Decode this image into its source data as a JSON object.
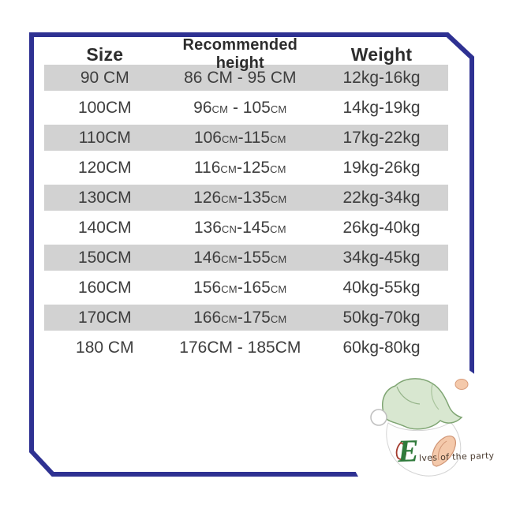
{
  "table": {
    "headers": [
      "Size",
      "Recommended height",
      "Weight"
    ],
    "rows": [
      {
        "size": "90 CM",
        "height": [
          [
            "86 CM - 95 CM",
            "normal"
          ]
        ],
        "weight": "12kg-16kg",
        "shaded": true
      },
      {
        "size": "100CM",
        "height": [
          [
            "96",
            "normal"
          ],
          [
            "CM",
            "small"
          ],
          [
            " - 105",
            "normal"
          ],
          [
            "CM",
            "small"
          ]
        ],
        "weight": "14kg-19kg",
        "shaded": false
      },
      {
        "size": "110CM",
        "height": [
          [
            "106",
            "normal"
          ],
          [
            "CM",
            "small"
          ],
          [
            "-115",
            "normal"
          ],
          [
            "CM",
            "small"
          ]
        ],
        "weight": "17kg-22kg",
        "shaded": true
      },
      {
        "size": "120CM",
        "height": [
          [
            "116",
            "normal"
          ],
          [
            "CM",
            "small"
          ],
          [
            "-125",
            "normal"
          ],
          [
            "CM",
            "small"
          ]
        ],
        "weight": "19kg-26kg",
        "shaded": false
      },
      {
        "size": "130CM",
        "height": [
          [
            "126",
            "normal"
          ],
          [
            "CM",
            "small"
          ],
          [
            "-135",
            "normal"
          ],
          [
            "CM",
            "small"
          ]
        ],
        "weight": "22kg-34kg",
        "shaded": true
      },
      {
        "size": "140CM",
        "height": [
          [
            "136",
            "normal"
          ],
          [
            "CN",
            "small"
          ],
          [
            "-145",
            "normal"
          ],
          [
            "CM",
            "small"
          ]
        ],
        "weight": "26kg-40kg",
        "shaded": false
      },
      {
        "size": "150CM",
        "height": [
          [
            "146",
            "normal"
          ],
          [
            "CM",
            "small"
          ],
          [
            "-155",
            "normal"
          ],
          [
            "CM",
            "small"
          ]
        ],
        "weight": "34kg-45kg",
        "shaded": true
      },
      {
        "size": "160CM",
        "height": [
          [
            "156",
            "normal"
          ],
          [
            "CM",
            "small"
          ],
          [
            "-165",
            "normal"
          ],
          [
            "CM",
            "small"
          ]
        ],
        "weight": "40kg-55kg",
        "shaded": false
      },
      {
        "size": "170CM",
        "height": [
          [
            "166",
            "normal"
          ],
          [
            "CM",
            "small"
          ],
          [
            "-175",
            "normal"
          ],
          [
            "CM",
            "small"
          ]
        ],
        "weight": "50kg-70kg",
        "shaded": true
      },
      {
        "size": "180 CM",
        "height": [
          [
            "176CM - 185CM",
            "normal"
          ]
        ],
        "weight": "60kg-80kg",
        "shaded": false
      }
    ]
  },
  "chart_data": {
    "type": "table",
    "title": "Kids costume size chart",
    "columns": [
      "Size",
      "Recommended height",
      "Weight"
    ],
    "rows": [
      [
        "90 CM",
        "86 CM - 95 CM",
        "12kg-16kg"
      ],
      [
        "100CM",
        "96CM - 105CM",
        "14kg-19kg"
      ],
      [
        "110CM",
        "106CM-115CM",
        "17kg-22kg"
      ],
      [
        "120CM",
        "116CM-125CM",
        "19kg-26kg"
      ],
      [
        "130CM",
        "126CM-135CM",
        "22kg-34kg"
      ],
      [
        "140CM",
        "136CN-145CM",
        "26kg-40kg"
      ],
      [
        "150CM",
        "146CM-155CM",
        "34kg-45kg"
      ],
      [
        "160CM",
        "156CM-165CM",
        "40kg-55kg"
      ],
      [
        "170CM",
        "166CM-175CM",
        "50kg-70kg"
      ],
      [
        "180 CM",
        "176CM - 185CM",
        "60kg-80kg"
      ]
    ],
    "layout": {
      "shaded_rows": [
        0,
        2,
        4,
        6,
        8
      ],
      "shade_color": "#d2d2d2",
      "border_color": "#2e3192"
    }
  },
  "logo": {
    "initial": "E",
    "rest": "lves of the party"
  },
  "colors": {
    "frame_navy": "#2e3192",
    "row_shade": "#d2d2d2",
    "hat_green": "#d8e7d0",
    "hat_outline": "#7fa573",
    "ear_peach": "#f4c9ab",
    "brand_green": "#2f7a3b",
    "text_dark": "#3e3e3e"
  }
}
